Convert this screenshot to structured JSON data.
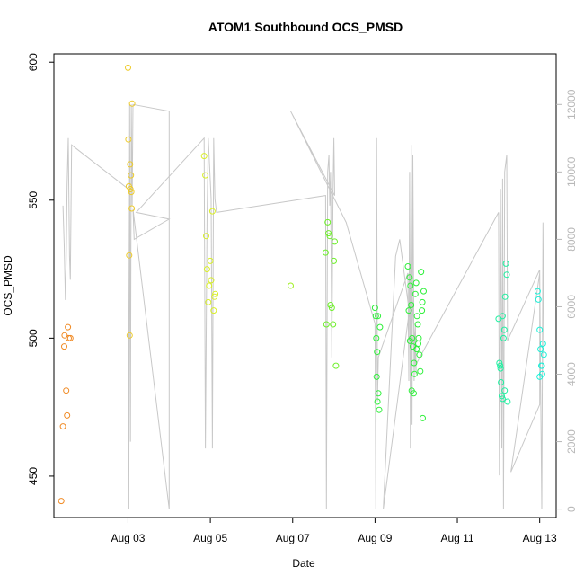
{
  "chart_data": {
    "type": "scatter",
    "title": "ATOM1 Southbound OCS_PMSD",
    "xlabel": "Date",
    "ylabel": "OCS_PMSD",
    "x_ticks": [
      {
        "value": 2,
        "label": "Aug 03"
      },
      {
        "value": 4,
        "label": "Aug 05"
      },
      {
        "value": 6,
        "label": "Aug 07"
      },
      {
        "value": 8,
        "label": "Aug 09"
      },
      {
        "value": 10,
        "label": "Aug 11"
      },
      {
        "value": 12,
        "label": "Aug 13"
      }
    ],
    "xlim": [
      0.2,
      12.4
    ],
    "ylim": [
      435,
      603
    ],
    "y_ticks": [
      450,
      500,
      550,
      600
    ],
    "y2lim": [
      -250,
      13500
    ],
    "y2_ticks": [
      0,
      2000,
      4000,
      6000,
      8000,
      10000,
      12000
    ],
    "line_color": "#c8c8c8",
    "grid": false,
    "secondary_line": [
      [
        0.42,
        9000
      ],
      [
        0.45,
        7800
      ],
      [
        0.48,
        6200
      ],
      [
        0.5,
        7400
      ],
      [
        0.52,
        9600
      ],
      [
        0.55,
        11000
      ],
      [
        0.58,
        7500
      ],
      [
        0.6,
        6800
      ],
      [
        0.63,
        10800
      ],
      [
        2.0,
        9500
      ],
      [
        2.02,
        0
      ],
      [
        2.04,
        12000
      ],
      [
        2.06,
        2000
      ],
      [
        2.08,
        12000
      ],
      [
        2.1,
        9000
      ],
      [
        2.12,
        12000
      ],
      [
        3.0,
        11800
      ],
      [
        3.0,
        0
      ],
      [
        2.12,
        8900
      ],
      [
        2.15,
        8000
      ],
      [
        3.0,
        8600
      ],
      [
        2.2,
        8800
      ],
      [
        3.85,
        11000
      ],
      [
        3.88,
        1800
      ],
      [
        3.92,
        8500
      ],
      [
        3.95,
        11000
      ],
      [
        4.02,
        9200
      ],
      [
        4.05,
        1800
      ],
      [
        4.08,
        11000
      ],
      [
        4.11,
        9200
      ],
      [
        4.15,
        8800
      ],
      [
        6.8,
        9300
      ],
      [
        6.82,
        0
      ],
      [
        6.85,
        10000
      ],
      [
        6.88,
        10500
      ],
      [
        6.9,
        9000
      ],
      [
        6.92,
        10000
      ],
      [
        6.95,
        4500
      ],
      [
        6.98,
        9500
      ],
      [
        7.0,
        11000
      ],
      [
        7.02,
        9300
      ],
      [
        5.95,
        11800
      ],
      [
        7.3,
        8500
      ],
      [
        8.0,
        5500
      ],
      [
        8.02,
        0
      ],
      [
        8.04,
        11000
      ],
      [
        8.06,
        3200
      ],
      [
        8.08,
        4500
      ],
      [
        8.8,
        7000
      ],
      [
        8.82,
        3800
      ],
      [
        8.84,
        10000
      ],
      [
        8.86,
        1800
      ],
      [
        8.88,
        10800
      ],
      [
        8.9,
        2500
      ],
      [
        8.92,
        10500
      ],
      [
        8.95,
        3800
      ],
      [
        8.98,
        5500
      ],
      [
        9.0,
        4000
      ],
      [
        8.9,
        6500
      ],
      [
        8.2,
        0
      ],
      [
        8.5,
        7500
      ],
      [
        8.6,
        8000
      ],
      [
        9.0,
        4300
      ],
      [
        11.0,
        8800
      ],
      [
        11.02,
        1000
      ],
      [
        11.05,
        9500
      ],
      [
        11.08,
        1800
      ],
      [
        11.1,
        9800
      ],
      [
        11.12,
        0
      ],
      [
        11.15,
        10000
      ],
      [
        11.2,
        10500
      ],
      [
        11.22,
        5000
      ],
      [
        12.0,
        7100
      ],
      [
        12.0,
        3100
      ],
      [
        11.3,
        1100
      ],
      [
        12.0,
        7000
      ],
      [
        12.02,
        4000
      ],
      [
        12.05,
        0
      ],
      [
        12.08,
        8500
      ],
      [
        12.1,
        4000
      ]
    ],
    "series": [
      {
        "color": "#f08a24",
        "points": [
          [
            0.38,
            441
          ],
          [
            0.42,
            468
          ],
          [
            0.45,
            497
          ],
          [
            0.46,
            501
          ],
          [
            0.5,
            481
          ],
          [
            0.52,
            472
          ],
          [
            0.54,
            504
          ],
          [
            0.56,
            500
          ],
          [
            0.6,
            500
          ]
        ]
      },
      {
        "color": "#eecb2a",
        "points": [
          [
            2.0,
            598
          ],
          [
            2.01,
            572
          ],
          [
            2.02,
            555
          ],
          [
            2.03,
            530
          ],
          [
            2.04,
            501
          ],
          [
            2.05,
            563
          ],
          [
            2.06,
            554
          ],
          [
            2.07,
            559
          ],
          [
            2.08,
            553
          ],
          [
            2.09,
            547
          ],
          [
            2.1,
            585
          ]
        ]
      },
      {
        "color": "#d9ef28",
        "points": [
          [
            3.85,
            566
          ],
          [
            3.88,
            559
          ],
          [
            3.9,
            537
          ],
          [
            3.92,
            525
          ],
          [
            3.95,
            513
          ],
          [
            3.97,
            519
          ],
          [
            4.0,
            528
          ],
          [
            4.02,
            521
          ],
          [
            4.05,
            546
          ],
          [
            4.08,
            510
          ],
          [
            4.1,
            515
          ],
          [
            4.12,
            516
          ]
        ]
      },
      {
        "color": "#9ff020",
        "points": [
          [
            5.95,
            519
          ]
        ]
      },
      {
        "color": "#6ef02a",
        "points": [
          [
            6.8,
            531
          ],
          [
            6.82,
            505
          ],
          [
            6.85,
            542
          ],
          [
            6.87,
            538
          ],
          [
            6.9,
            537
          ],
          [
            6.92,
            512
          ],
          [
            6.95,
            511
          ],
          [
            6.98,
            505
          ],
          [
            7.0,
            528
          ],
          [
            7.02,
            535
          ],
          [
            7.05,
            490
          ]
        ]
      },
      {
        "color": "#2ef03a",
        "points": [
          [
            8.0,
            511
          ],
          [
            8.02,
            508
          ],
          [
            8.03,
            500
          ],
          [
            8.04,
            486
          ],
          [
            8.06,
            477
          ],
          [
            8.08,
            480
          ],
          [
            8.1,
            474
          ],
          [
            8.05,
            495
          ],
          [
            8.07,
            508
          ],
          [
            8.12,
            504
          ],
          [
            8.8,
            526
          ],
          [
            8.82,
            510
          ],
          [
            8.84,
            522
          ],
          [
            8.86,
            519
          ],
          [
            8.88,
            512
          ],
          [
            8.9,
            500
          ],
          [
            8.92,
            497
          ],
          [
            8.94,
            480
          ],
          [
            8.96,
            487
          ],
          [
            8.98,
            516
          ],
          [
            9.0,
            520
          ],
          [
            9.02,
            508
          ],
          [
            9.04,
            505
          ],
          [
            9.06,
            500
          ],
          [
            9.08,
            494
          ],
          [
            9.1,
            488
          ],
          [
            9.12,
            524
          ],
          [
            9.14,
            510
          ],
          [
            9.16,
            471
          ],
          [
            9.18,
            517
          ],
          [
            8.85,
            499
          ],
          [
            8.95,
            491
          ],
          [
            9.05,
            498
          ],
          [
            9.15,
            513
          ],
          [
            8.89,
            481
          ],
          [
            9.01,
            496
          ]
        ]
      },
      {
        "color": "#1ef0a0",
        "points": [
          [
            11.0,
            507
          ],
          [
            11.02,
            491
          ],
          [
            11.04,
            490
          ],
          [
            11.06,
            484
          ],
          [
            11.08,
            479
          ],
          [
            11.1,
            478
          ],
          [
            11.12,
            500
          ],
          [
            11.14,
            503
          ],
          [
            11.16,
            515
          ],
          [
            11.18,
            527
          ],
          [
            11.2,
            523
          ],
          [
            11.22,
            477
          ],
          [
            11.05,
            489
          ],
          [
            11.15,
            481
          ],
          [
            11.1,
            508
          ]
        ]
      },
      {
        "color": "#1ef0d8",
        "points": [
          [
            11.95,
            517
          ],
          [
            11.97,
            514
          ],
          [
            12.0,
            503
          ],
          [
            12.02,
            496
          ],
          [
            12.04,
            490
          ],
          [
            12.06,
            487
          ],
          [
            12.08,
            498
          ],
          [
            12.1,
            494
          ],
          [
            12.0,
            486
          ],
          [
            12.05,
            490
          ]
        ]
      }
    ]
  }
}
